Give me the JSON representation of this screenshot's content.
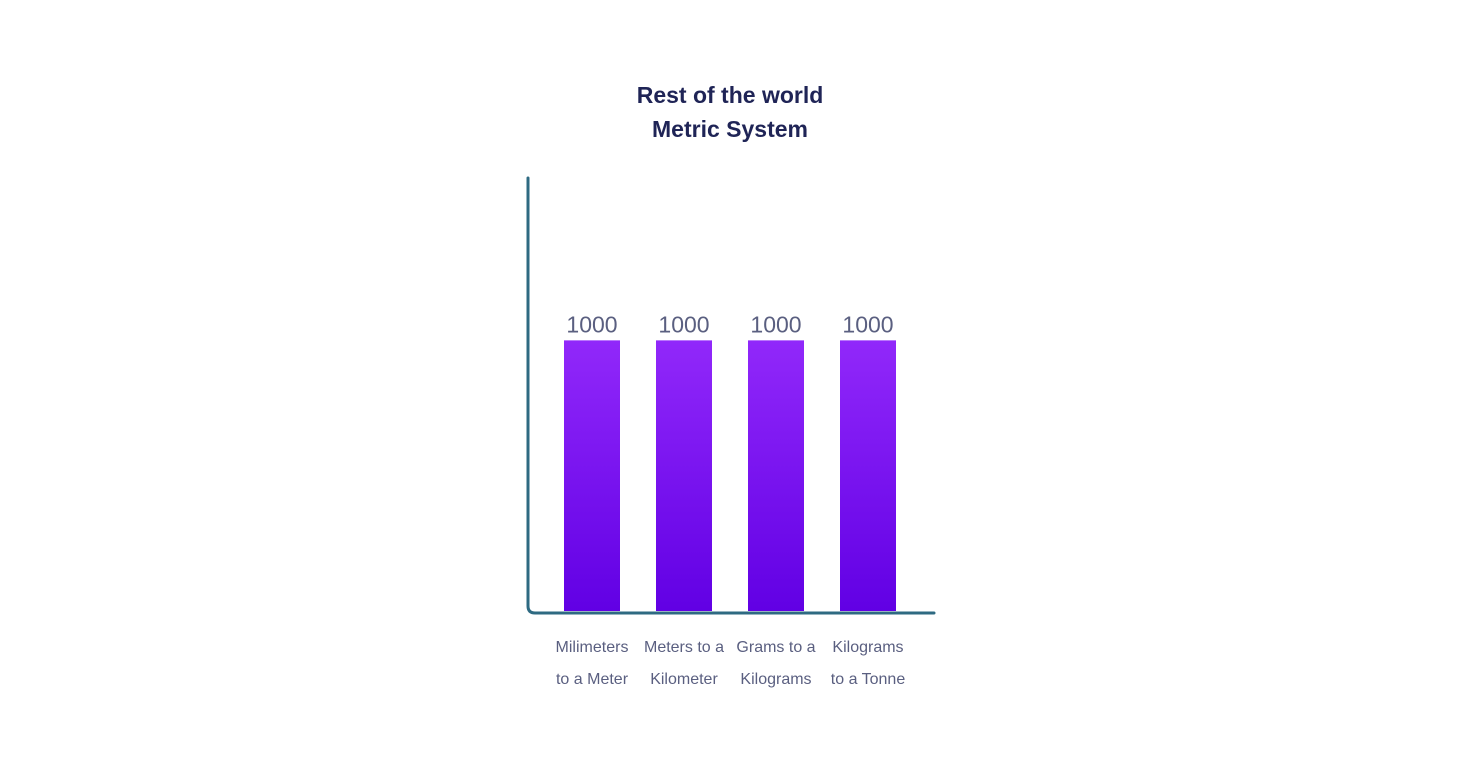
{
  "chart_data": {
    "type": "bar",
    "title_lines": [
      "Rest of the world",
      "Metric System"
    ],
    "categories": [
      [
        "Milimeters",
        "to a Meter"
      ],
      [
        "Meters to a",
        "Kilometer"
      ],
      [
        "Grams to a",
        "Kilograms"
      ],
      [
        "Kilograms",
        "to a Tonne"
      ]
    ],
    "values": [
      1000,
      1000,
      1000,
      1000
    ],
    "data_labels": [
      "1000",
      "1000",
      "1000",
      "1000"
    ],
    "ylim": [
      0,
      1600
    ],
    "grid": false,
    "colors": {
      "bar_top": "#9128fa",
      "bar_bottom": "#6100e4",
      "axis": "#2e6a82",
      "title": "#1f2456",
      "label": "#5a5f80"
    }
  }
}
